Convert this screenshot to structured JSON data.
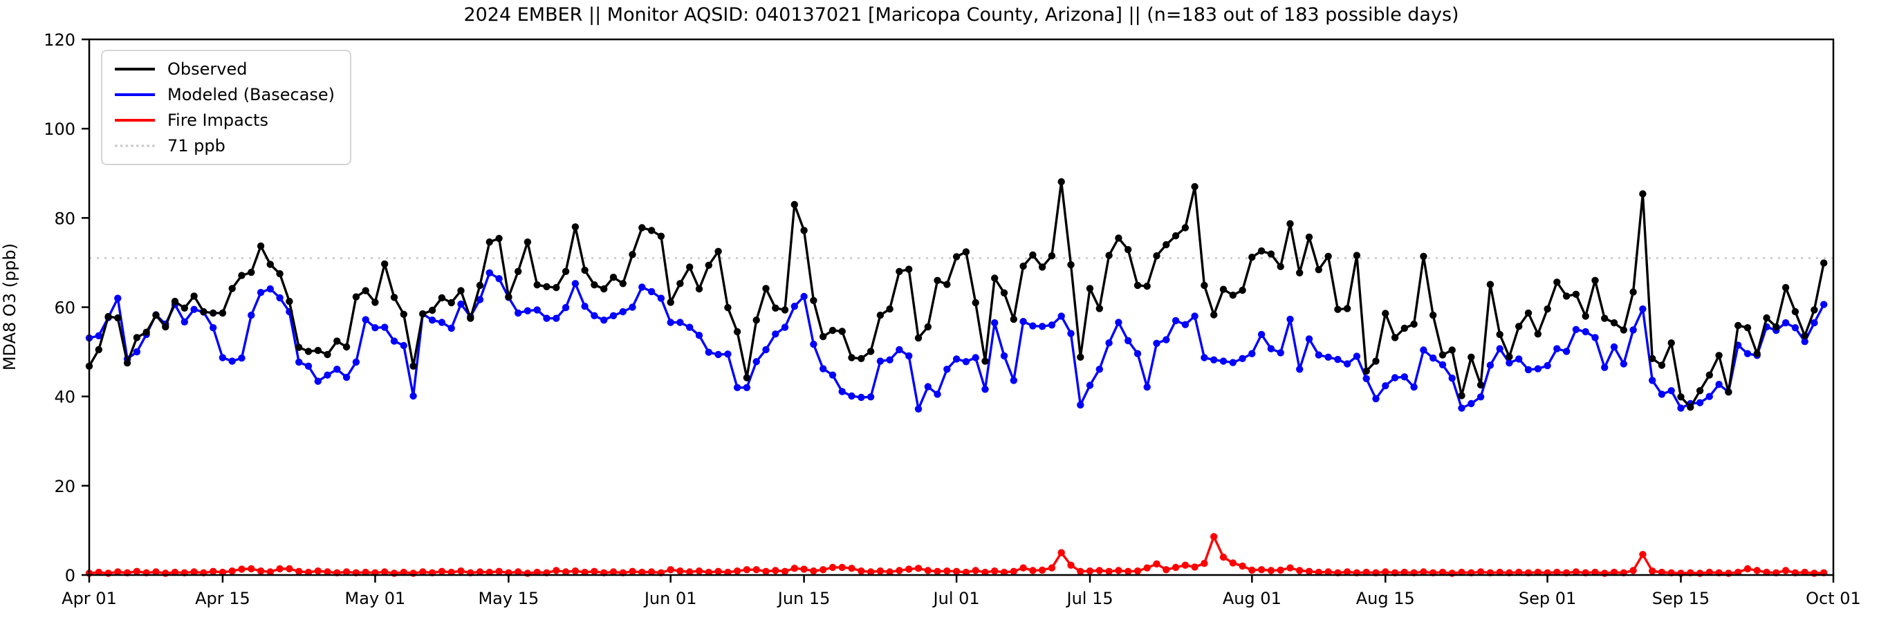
{
  "title": "2024 EMBER || Monitor AQSID: 040137021 [Maricopa County, Arizona] || (n=183 out of 183 possible days)",
  "legend": {
    "observed_label": "Observed",
    "modeled_label": "Modeled (Basecase)",
    "fire_label": "Fire Impacts",
    "threshold_label": "71 ppb"
  },
  "colors": {
    "observed": "#000000",
    "modeled": "#0000ff",
    "fire": "#ff0000",
    "threshold": "#d0d0d0"
  },
  "chart_data": {
    "type": "line",
    "title": "2024 EMBER || Monitor AQSID: 040137021 [Maricopa County, Arizona] || (n=183 out of 183 possible days)",
    "xlabel": "",
    "ylabel": "MDA8 O3 (ppb)",
    "ylim": [
      0,
      120
    ],
    "yticks": [
      0,
      20,
      40,
      60,
      80,
      100,
      120
    ],
    "x_range": [
      "2024-04-01",
      "2024-10-01"
    ],
    "n_days": 183,
    "grid": false,
    "legend_position": "upper left",
    "xticks": [
      {
        "day": 0,
        "label": "Apr 01"
      },
      {
        "day": 14,
        "label": "Apr 15"
      },
      {
        "day": 30,
        "label": "May 01"
      },
      {
        "day": 44,
        "label": "May 15"
      },
      {
        "day": 61,
        "label": "Jun 01"
      },
      {
        "day": 75,
        "label": "Jun 15"
      },
      {
        "day": 91,
        "label": "Jul 01"
      },
      {
        "day": 105,
        "label": "Jul 15"
      },
      {
        "day": 122,
        "label": "Aug 01"
      },
      {
        "day": 136,
        "label": "Aug 15"
      },
      {
        "day": 153,
        "label": "Sep 01"
      },
      {
        "day": 167,
        "label": "Sep 15"
      },
      {
        "day": 183,
        "label": "Oct 01"
      }
    ],
    "threshold": {
      "value": 71,
      "label": "71 ppb",
      "color": "#d0d0d0",
      "style": "dotted"
    },
    "series": [
      {
        "name": "Modeled (Basecase)",
        "color": "#0000ff",
        "values": [
          53.1,
          53.6,
          57.7,
          62,
          48.4,
          50,
          53.9,
          58.3,
          56.2,
          60.6,
          56.7,
          59.5,
          58.9,
          55.4,
          48.7,
          47.9,
          48.6,
          58.2,
          63.3,
          64.1,
          62.1,
          59,
          47.7,
          46.8,
          43.4,
          44.8,
          46.1,
          44.3,
          47.7,
          57.2,
          55.4,
          55.5,
          52.4,
          51.4,
          40.1,
          58.5,
          57.1,
          56.6,
          55.3,
          60.7,
          57.9,
          61.7,
          67.7,
          66.4,
          62.2,
          58.7,
          59.2,
          59.4,
          57.5,
          57.5,
          59.9,
          65.3,
          60.2,
          58.1,
          57.1,
          58.1,
          59,
          60,
          64.5,
          63.5,
          62,
          56.6,
          56.6,
          55.5,
          53.7,
          49.9,
          49.4,
          49.5,
          42,
          42,
          47.8,
          50.5,
          54,
          55.5,
          60.2,
          62.4,
          51.7,
          46.2,
          44.8,
          41.1,
          40.1,
          39.8,
          39.9,
          47.9,
          48.2,
          50.5,
          49.1,
          37.2,
          42.2,
          40.5,
          46.1,
          48.4,
          47.8,
          48.7,
          41.6,
          56.5,
          49.1,
          43.6,
          56.8,
          55.8,
          55.7,
          56,
          58,
          54.1,
          38.1,
          42.5,
          46.1,
          52,
          56.6,
          52.5,
          49.6,
          42.1,
          51.9,
          52.7,
          57,
          56.1,
          58,
          48.7,
          48.2,
          47.9,
          47.6,
          48.5,
          49.6,
          53.9,
          50.7,
          49.8,
          57.3,
          46.1,
          52.9,
          49.3,
          48.8,
          48.3,
          47.3,
          49,
          44,
          39.5,
          42.4,
          44.2,
          44.4,
          42.1,
          50.4,
          48.6,
          47.1,
          44.1,
          37.4,
          38.4,
          39.9,
          47,
          50.7,
          47.5,
          48.4,
          46,
          46.2,
          46.9,
          50.7,
          50.1,
          55,
          54.5,
          53.2,
          46.5,
          51.1,
          47.3,
          54.9,
          59.6,
          43.6,
          40.5,
          41.3,
          37.4,
          38.4,
          38.6,
          40,
          42.7,
          41,
          51.5,
          49.6,
          49.2,
          55.6,
          54.8,
          56.5,
          55.4,
          52.3,
          56.5,
          60.6
        ]
      },
      {
        "name": "Observed",
        "color": "#000000",
        "values": [
          46.8,
          50.5,
          57.9,
          57.6,
          47.5,
          53.2,
          54.4,
          58.2,
          55.6,
          61.3,
          59.8,
          62.5,
          59,
          58.7,
          58.7,
          64.2,
          67.1,
          67.8,
          73.7,
          69.6,
          67.5,
          61.3,
          51,
          50.1,
          50.3,
          49.4,
          52.4,
          51.1,
          62.3,
          63.7,
          61.1,
          69.7,
          62.2,
          58.4,
          46.8,
          58.5,
          59.3,
          62.1,
          61,
          63.7,
          57.5,
          64.9,
          74.6,
          75.4,
          62.3,
          68,
          74.6,
          65,
          64.6,
          64.4,
          68,
          78,
          68.3,
          65,
          64.1,
          66.7,
          65.3,
          71.8,
          77.8,
          77.2,
          75.9,
          61.1,
          65.3,
          69,
          64.1,
          69.4,
          72.5,
          59.9,
          54.5,
          44.2,
          57.1,
          64.2,
          59.8,
          59.4,
          83,
          77.2,
          61.5,
          53.4,
          54.8,
          54.6,
          48.7,
          48.5,
          50.1,
          58.2,
          59.6,
          68,
          68.5,
          53.1,
          55.6,
          66,
          65.1,
          71.3,
          72.4,
          61,
          47.9,
          66.5,
          63.2,
          57.3,
          69.2,
          71.7,
          69,
          71.5,
          88.1,
          69.5,
          48.8,
          64.2,
          59.7,
          71.6,
          75.5,
          72.9,
          64.9,
          64.7,
          71.5,
          74,
          76,
          77.8,
          87,
          64.9,
          58.3,
          64,
          62.7,
          63.8,
          71.2,
          72.6,
          71.9,
          69.1,
          78.7,
          67.7,
          75.7,
          68.4,
          71.4,
          59.5,
          59.7,
          71.6,
          45.7,
          47.9,
          58.6,
          53.2,
          55.3,
          56.2,
          71.4,
          58.2,
          49.3,
          50.4,
          40.2,
          48.8,
          42.6,
          65.1,
          53.9,
          48.9,
          55.7,
          58.7,
          54,
          59.6,
          65.6,
          62.5,
          62.9,
          58,
          66,
          57.5,
          56.5,
          54.9,
          63.4,
          85.4,
          48.5,
          47,
          52,
          39.9,
          37.6,
          41.3,
          44.8,
          49.2,
          41,
          55.9,
          55.4,
          49.6,
          57.6,
          55.6,
          64.4,
          59,
          53.6,
          59.4,
          69.9
        ]
      },
      {
        "name": "Fire Impacts",
        "color": "#ff0000",
        "values": [
          0.4,
          0.6,
          0.4,
          0.7,
          0.5,
          0.8,
          0.5,
          0.7,
          0.4,
          0.6,
          0.5,
          0.7,
          0.5,
          0.8,
          0.6,
          0.9,
          1.3,
          1.4,
          0.9,
          0.7,
          1.4,
          1.4,
          0.8,
          0.6,
          0.9,
          0.7,
          0.5,
          0.7,
          0.5,
          0.6,
          0.5,
          0.7,
          0.4,
          0.6,
          0.4,
          0.7,
          0.5,
          0.8,
          0.6,
          0.9,
          0.5,
          0.7,
          0.6,
          0.8,
          0.5,
          0.7,
          0.4,
          0.6,
          0.5,
          1,
          0.7,
          0.9,
          0.6,
          0.8,
          0.5,
          0.7,
          0.5,
          0.8,
          0.6,
          0.7,
          0.5,
          1.2,
          0.9,
          0.7,
          0.9,
          0.6,
          0.8,
          0.6,
          0.9,
          1.2,
          1.2,
          0.8,
          1,
          0.8,
          1.5,
          1.3,
          0.9,
          1.2,
          1.7,
          1.7,
          1.5,
          0.9,
          0.7,
          0.9,
          0.7,
          1,
          1.3,
          1.5,
          1,
          0.8,
          0.9,
          0.8,
          0.6,
          1,
          0.6,
          0.9,
          0.6,
          0.8,
          1.6,
          1,
          1.1,
          1.6,
          5,
          2.2,
          0.8,
          0.9,
          1,
          0.8,
          1,
          0.8,
          0.9,
          1.6,
          2.5,
          1.2,
          1.7,
          2.2,
          1.8,
          2.6,
          8.6,
          4,
          2.7,
          2,
          1.1,
          1.2,
          1,
          1.1,
          1.6,
          1,
          0.8,
          0.6,
          0.7,
          0.5,
          0.7,
          0.5,
          0.6,
          0.5,
          0.7,
          0.5,
          0.6,
          0.5,
          0.7,
          0.5,
          0.6,
          0.4,
          0.6,
          0.5,
          0.7,
          0.5,
          0.6,
          0.5,
          0.6,
          0.5,
          0.6,
          0.5,
          0.6,
          0.5,
          0.7,
          0.5,
          0.6,
          0.4,
          0.6,
          0.5,
          1,
          4.6,
          0.9,
          0.6,
          0.5,
          0.4,
          0.5,
          0.4,
          0.6,
          0.5,
          0.4,
          0.6,
          1.4,
          1,
          0.6,
          0.5,
          1,
          0.5,
          0.6,
          0.4,
          0.5
        ]
      }
    ]
  }
}
